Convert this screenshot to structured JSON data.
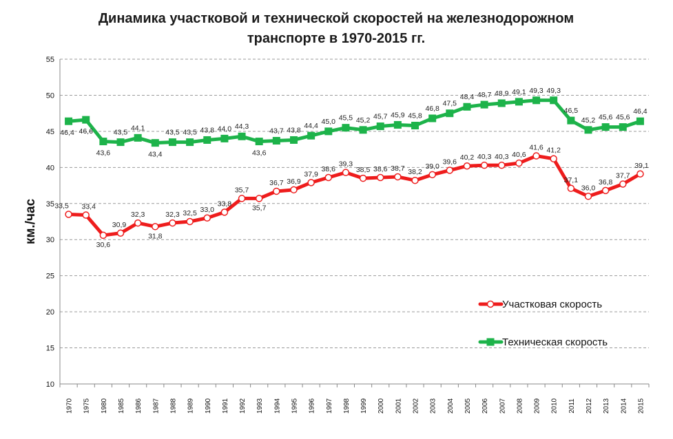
{
  "colors": {
    "section_speed": "#ee1c1c",
    "technical_speed": "#1db34a"
  },
  "chart_data": {
    "type": "line",
    "title": "Динамика участковой и технической скоростей на железнодорожном транспорте в 1970-2015 гг.",
    "title_lines": [
      "Динамика участковой и технической скоростей на железнодорожном",
      "транспорте в 1970-2015 гг."
    ],
    "xlabel": "",
    "ylabel": "км./час",
    "ylim": [
      10,
      55
    ],
    "yticks": [
      10,
      15,
      20,
      25,
      30,
      35,
      40,
      45,
      50,
      55
    ],
    "grid": true,
    "legend_position": "right",
    "categories": [
      "1970",
      "1975",
      "1980",
      "1985",
      "1986",
      "1987",
      "1988",
      "1989",
      "1990",
      "1991",
      "1992",
      "1993",
      "1994",
      "1995",
      "1996",
      "1997",
      "1998",
      "1999",
      "2000",
      "2001",
      "2002",
      "2003",
      "2004",
      "2005",
      "2006",
      "2007",
      "2008",
      "2009",
      "2010",
      "2011",
      "2012",
      "2013",
      "2014",
      "2015"
    ],
    "series": [
      {
        "name": "Участковая скорость",
        "color": "#ee1c1c",
        "marker": "circle",
        "values": [
          33.5,
          33.4,
          30.6,
          30.9,
          32.3,
          31.8,
          32.3,
          32.5,
          33.0,
          33.8,
          35.7,
          35.7,
          36.7,
          36.9,
          37.9,
          38.6,
          39.3,
          38.5,
          38.6,
          38.7,
          38.2,
          39.0,
          39.6,
          40.2,
          40.3,
          40.3,
          40.6,
          41.6,
          41.2,
          37.1,
          36.0,
          36.8,
          37.7,
          39.1
        ],
        "labels": [
          "33,5",
          "33,4",
          "30,6",
          "30,9",
          "32,3",
          "31,8",
          "32,3",
          "32,5",
          "33,0",
          "33,8",
          "35,7",
          "35,7",
          "36,7",
          "36,9",
          "37,9",
          "38,6",
          "39,3",
          "38,5",
          "38,6",
          "38,7",
          "38,2",
          "39,0",
          "39,6",
          "40,2",
          "40,3",
          "40,3",
          "40,6",
          "41,6",
          "41,2",
          "37,1",
          "36,0",
          "36,8",
          "37,7",
          "39,1"
        ]
      },
      {
        "name": "Техническая скорость",
        "color": "#1db34a",
        "marker": "square",
        "values": [
          46.4,
          46.6,
          43.6,
          43.5,
          44.1,
          43.4,
          43.5,
          43.5,
          43.8,
          44.0,
          44.3,
          43.6,
          43.7,
          43.8,
          44.4,
          45.0,
          45.5,
          45.2,
          45.7,
          45.9,
          45.8,
          46.8,
          47.5,
          48.4,
          48.7,
          48.9,
          49.1,
          49.3,
          49.3,
          46.5,
          45.2,
          45.6,
          45.6,
          46.4
        ],
        "labels": [
          "46,4",
          "46,6",
          "43,6",
          "43,5",
          "44,1",
          "43,4",
          "43,5",
          "43,5",
          "43,8",
          "44,0",
          "44,3",
          "43,6",
          "43,7",
          "43,8",
          "44,4",
          "45,0",
          "45,5",
          "45,2",
          "45,7",
          "45,9",
          "45,8",
          "46,8",
          "47,5",
          "48,4",
          "48,7",
          "48,9",
          "49,1",
          "49,3",
          "49,3",
          "46,5",
          "45,2",
          "45,6",
          "45,6",
          "46,4"
        ]
      }
    ]
  }
}
